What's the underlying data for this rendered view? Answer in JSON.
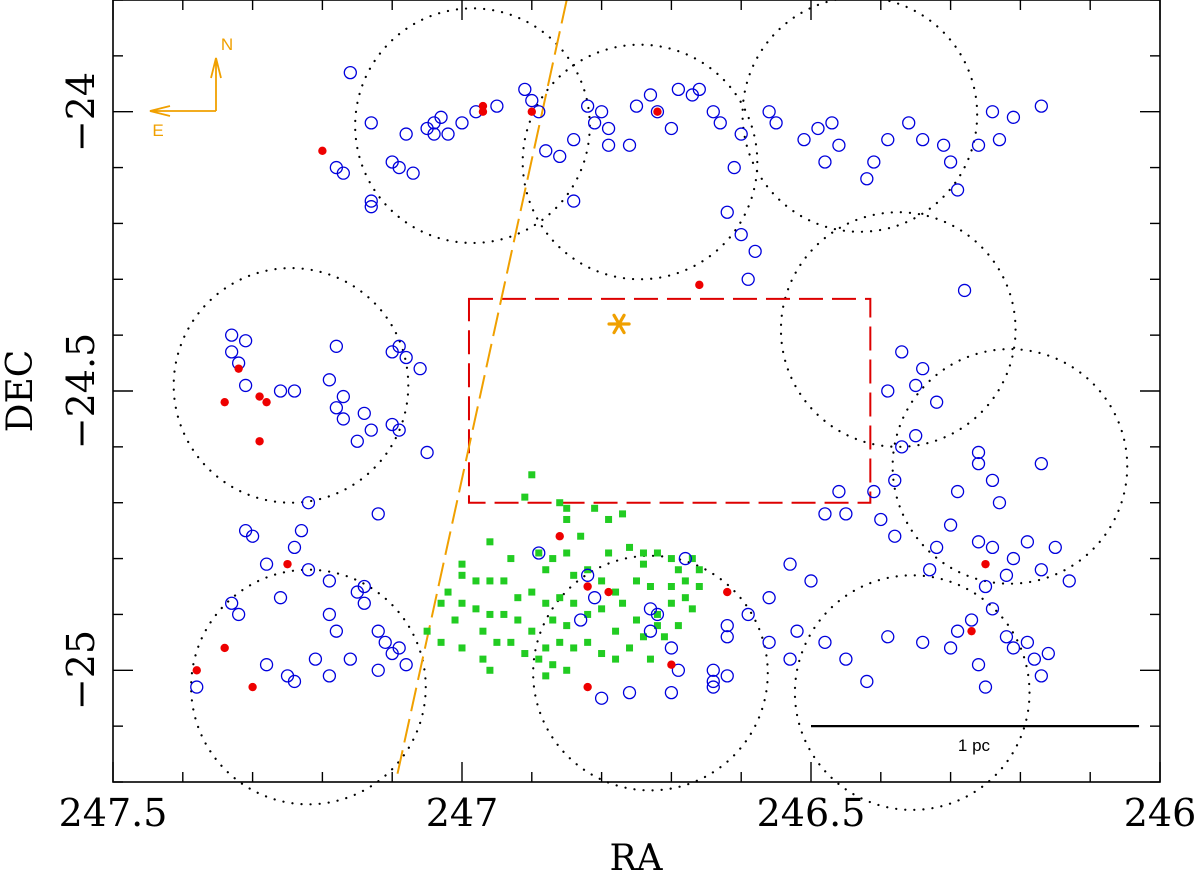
{
  "chart_data": {
    "type": "scatter",
    "xlabel": "RA",
    "ylabel": "DEC",
    "xlim": [
      247.5,
      246.0
    ],
    "ylim": [
      -25.2,
      -23.8
    ],
    "x_ticks": [
      {
        "value": 247.5,
        "label": "247.5"
      },
      {
        "value": 247.0,
        "label": "247"
      },
      {
        "value": 246.5,
        "label": "246.5"
      },
      {
        "value": 246.0,
        "label": "246"
      }
    ],
    "y_ticks": [
      {
        "value": -24.0,
        "label": "−24"
      },
      {
        "value": -24.5,
        "label": "−24.5"
      },
      {
        "value": -25.0,
        "label": "−25"
      }
    ],
    "colors": {
      "blue": "#0000dd",
      "red": "#ee0000",
      "green": "#22cc22",
      "orange": "#f0a000",
      "field": "#000000",
      "box": "#dd0000"
    },
    "fields": [
      {
        "ra": 247.245,
        "dec": -24.49,
        "r": 0.21
      },
      {
        "ra": 247.22,
        "dec": -25.03,
        "r": 0.21
      },
      {
        "ra": 246.985,
        "dec": -24.025,
        "r": 0.21
      },
      {
        "ra": 246.745,
        "dec": -24.09,
        "r": 0.21
      },
      {
        "ra": 246.43,
        "dec": -24.005,
        "r": 0.21
      },
      {
        "ra": 246.73,
        "dec": -25.005,
        "r": 0.21
      },
      {
        "ra": 246.375,
        "dec": -24.39,
        "r": 0.21
      },
      {
        "ra": 246.215,
        "dec": -24.635,
        "r": 0.21
      },
      {
        "ra": 246.355,
        "dec": -25.04,
        "r": 0.21
      }
    ],
    "blue_circles": [
      [
        247.33,
        -24.4
      ],
      [
        247.31,
        -24.41
      ],
      [
        247.33,
        -24.43
      ],
      [
        247.32,
        -24.45
      ],
      [
        247.18,
        -24.42
      ],
      [
        247.19,
        -24.48
      ],
      [
        247.14,
        -24.54
      ],
      [
        247.18,
        -24.53
      ],
      [
        247.17,
        -24.51
      ],
      [
        247.31,
        -24.49
      ],
      [
        247.26,
        -24.5
      ],
      [
        247.24,
        -24.5
      ],
      [
        247.17,
        -24.55
      ],
      [
        247.13,
        -24.57
      ],
      [
        247.15,
        -24.59
      ],
      [
        247.22,
        -24.7
      ],
      [
        247.1,
        -24.43
      ],
      [
        247.09,
        -24.42
      ],
      [
        247.08,
        -24.44
      ],
      [
        247.06,
        -24.46
      ],
      [
        247.1,
        -24.56
      ],
      [
        247.09,
        -24.57
      ],
      [
        247.05,
        -24.61
      ],
      [
        247.12,
        -24.72
      ],
      [
        247.31,
        -24.75
      ],
      [
        247.3,
        -24.76
      ],
      [
        247.28,
        -24.81
      ],
      [
        247.26,
        -24.87
      ],
      [
        247.33,
        -24.88
      ],
      [
        247.32,
        -24.9
      ],
      [
        247.23,
        -24.75
      ],
      [
        247.24,
        -24.78
      ],
      [
        247.22,
        -24.82
      ],
      [
        247.19,
        -24.84
      ],
      [
        247.14,
        -24.85
      ],
      [
        247.15,
        -24.86
      ],
      [
        247.14,
        -24.88
      ],
      [
        247.19,
        -24.9
      ],
      [
        247.18,
        -24.93
      ],
      [
        247.12,
        -24.93
      ],
      [
        247.11,
        -24.95
      ],
      [
        247.1,
        -24.97
      ],
      [
        247.09,
        -24.96
      ],
      [
        247.08,
        -24.99
      ],
      [
        247.21,
        -24.98
      ],
      [
        247.19,
        -25.01
      ],
      [
        247.16,
        -24.98
      ],
      [
        247.12,
        -25.0
      ],
      [
        247.28,
        -24.99
      ],
      [
        247.25,
        -25.01
      ],
      [
        247.24,
        -25.02
      ],
      [
        247.38,
        -25.03
      ],
      [
        247.16,
        -23.93
      ],
      [
        247.13,
        -24.02
      ],
      [
        247.08,
        -24.04
      ],
      [
        247.1,
        -24.09
      ],
      [
        247.07,
        -24.11
      ],
      [
        247.04,
        -24.04
      ],
      [
        247.05,
        -24.03
      ],
      [
        247.04,
        -24.02
      ],
      [
        247.03,
        -24.01
      ],
      [
        247.02,
        -24.04
      ],
      [
        247.0,
        -24.02
      ],
      [
        246.98,
        -24.0
      ],
      [
        246.95,
        -23.99
      ],
      [
        247.18,
        -24.1
      ],
      [
        247.17,
        -24.11
      ],
      [
        247.09,
        -24.1
      ],
      [
        247.13,
        -24.16
      ],
      [
        247.13,
        -24.17
      ],
      [
        246.91,
        -23.96
      ],
      [
        246.9,
        -23.98
      ],
      [
        246.89,
        -24.0
      ],
      [
        246.88,
        -24.07
      ],
      [
        246.86,
        -24.08
      ],
      [
        246.84,
        -24.05
      ],
      [
        246.82,
        -23.99
      ],
      [
        246.81,
        -24.02
      ],
      [
        246.79,
        -24.03
      ],
      [
        246.8,
        -24.0
      ],
      [
        246.79,
        -24.06
      ],
      [
        246.84,
        -24.16
      ],
      [
        246.76,
        -24.06
      ],
      [
        246.75,
        -23.99
      ],
      [
        246.73,
        -23.97
      ],
      [
        246.69,
        -23.96
      ],
      [
        246.72,
        -24.0
      ],
      [
        246.7,
        -24.03
      ],
      [
        246.67,
        -23.97
      ],
      [
        246.66,
        -23.96
      ],
      [
        246.64,
        -24.0
      ],
      [
        246.63,
        -24.02
      ],
      [
        246.61,
        -24.1
      ],
      [
        246.6,
        -24.04
      ],
      [
        246.62,
        -24.18
      ],
      [
        246.56,
        -24.0
      ],
      [
        246.55,
        -24.02
      ],
      [
        246.6,
        -24.22
      ],
      [
        246.58,
        -24.25
      ],
      [
        246.59,
        -24.3
      ],
      [
        246.51,
        -24.05
      ],
      [
        246.49,
        -24.03
      ],
      [
        246.48,
        -24.09
      ],
      [
        246.47,
        -24.02
      ],
      [
        246.46,
        -24.06
      ],
      [
        246.42,
        -24.12
      ],
      [
        246.41,
        -24.09
      ],
      [
        246.39,
        -24.05
      ],
      [
        246.36,
        -24.02
      ],
      [
        246.34,
        -24.05
      ],
      [
        246.31,
        -24.06
      ],
      [
        246.3,
        -24.09
      ],
      [
        246.29,
        -24.14
      ],
      [
        246.26,
        -24.06
      ],
      [
        246.24,
        -24.0
      ],
      [
        246.23,
        -24.05
      ],
      [
        246.17,
        -23.99
      ],
      [
        246.21,
        -24.01
      ],
      [
        246.28,
        -24.32
      ],
      [
        246.37,
        -24.43
      ],
      [
        246.34,
        -24.46
      ],
      [
        246.35,
        -24.49
      ],
      [
        246.39,
        -24.5
      ],
      [
        246.32,
        -24.52
      ],
      [
        246.35,
        -24.58
      ],
      [
        246.26,
        -24.61
      ],
      [
        246.26,
        -24.63
      ],
      [
        246.17,
        -24.63
      ],
      [
        246.24,
        -24.66
      ],
      [
        246.29,
        -24.68
      ],
      [
        246.23,
        -24.7
      ],
      [
        246.3,
        -24.74
      ],
      [
        246.26,
        -24.77
      ],
      [
        246.24,
        -24.78
      ],
      [
        246.19,
        -24.77
      ],
      [
        246.21,
        -24.8
      ],
      [
        246.22,
        -24.83
      ],
      [
        246.15,
        -24.78
      ],
      [
        246.17,
        -24.82
      ],
      [
        246.13,
        -24.84
      ],
      [
        246.37,
        -24.6
      ],
      [
        246.38,
        -24.66
      ],
      [
        246.41,
        -24.68
      ],
      [
        246.46,
        -24.68
      ],
      [
        246.48,
        -24.72
      ],
      [
        246.45,
        -24.72
      ],
      [
        246.4,
        -24.73
      ],
      [
        246.38,
        -24.76
      ],
      [
        246.32,
        -24.78
      ],
      [
        246.33,
        -24.82
      ],
      [
        246.25,
        -24.85
      ],
      [
        246.24,
        -24.89
      ],
      [
        246.27,
        -24.91
      ],
      [
        246.29,
        -24.93
      ],
      [
        246.22,
        -24.94
      ],
      [
        246.21,
        -24.96
      ],
      [
        246.3,
        -24.96
      ],
      [
        246.26,
        -24.99
      ],
      [
        246.25,
        -25.03
      ],
      [
        246.18,
        -24.98
      ],
      [
        246.17,
        -25.01
      ],
      [
        246.16,
        -24.97
      ],
      [
        246.19,
        -24.95
      ],
      [
        246.34,
        -24.95
      ],
      [
        246.52,
        -24.93
      ],
      [
        246.48,
        -24.95
      ],
      [
        246.53,
        -24.98
      ],
      [
        246.45,
        -24.98
      ],
      [
        246.42,
        -25.02
      ],
      [
        246.39,
        -24.94
      ],
      [
        246.59,
        -24.9
      ],
      [
        246.62,
        -24.94
      ],
      [
        246.64,
        -25.02
      ],
      [
        246.64,
        -25.03
      ],
      [
        246.56,
        -24.95
      ],
      [
        246.62,
        -24.92
      ],
      [
        246.56,
        -24.87
      ],
      [
        246.5,
        -24.84
      ],
      [
        246.53,
        -24.81
      ],
      [
        246.68,
        -24.8
      ],
      [
        246.81,
        -24.87
      ],
      [
        246.73,
        -24.89
      ],
      [
        246.72,
        -24.9
      ],
      [
        246.73,
        -24.93
      ],
      [
        246.7,
        -24.96
      ],
      [
        246.69,
        -25.0
      ],
      [
        246.64,
        -25.0
      ],
      [
        246.62,
        -25.01
      ],
      [
        246.8,
        -25.05
      ],
      [
        246.76,
        -25.04
      ],
      [
        246.7,
        -25.04
      ],
      [
        246.82,
        -24.83
      ],
      [
        246.89,
        -24.79
      ],
      [
        246.83,
        -24.91
      ]
    ],
    "red_dots": [
      [
        247.2,
        -24.07
      ],
      [
        246.97,
        -23.99
      ],
      [
        246.97,
        -24.0
      ],
      [
        246.9,
        -24.0
      ],
      [
        246.72,
        -24.0
      ],
      [
        246.66,
        -24.31
      ],
      [
        247.32,
        -24.46
      ],
      [
        247.34,
        -24.52
      ],
      [
        247.29,
        -24.51
      ],
      [
        247.28,
        -24.52
      ],
      [
        247.29,
        -24.59
      ],
      [
        247.25,
        -24.81
      ],
      [
        247.34,
        -24.96
      ],
      [
        247.38,
        -25.0
      ],
      [
        247.3,
        -25.03
      ],
      [
        246.86,
        -24.76
      ],
      [
        246.82,
        -24.85
      ],
      [
        246.79,
        -24.86
      ],
      [
        246.7,
        -24.99
      ],
      [
        246.62,
        -24.86
      ],
      [
        246.25,
        -24.81
      ],
      [
        246.27,
        -24.93
      ],
      [
        246.82,
        -25.03
      ]
    ],
    "green_squares": [
      [
        246.9,
        -24.65
      ],
      [
        246.91,
        -24.69
      ],
      [
        246.86,
        -24.7
      ],
      [
        246.85,
        -24.71
      ],
      [
        246.85,
        -24.73
      ],
      [
        246.81,
        -24.71
      ],
      [
        246.77,
        -24.72
      ],
      [
        246.83,
        -24.76
      ],
      [
        246.79,
        -24.73
      ],
      [
        246.96,
        -24.77
      ],
      [
        246.93,
        -24.8
      ],
      [
        246.89,
        -24.79
      ],
      [
        246.87,
        -24.8
      ],
      [
        246.85,
        -24.79
      ],
      [
        246.82,
        -24.82
      ],
      [
        246.79,
        -24.79
      ],
      [
        246.76,
        -24.78
      ],
      [
        246.74,
        -24.79
      ],
      [
        246.74,
        -24.81
      ],
      [
        246.72,
        -24.79
      ],
      [
        246.7,
        -24.8
      ],
      [
        246.69,
        -24.82
      ],
      [
        246.67,
        -24.8
      ],
      [
        246.68,
        -24.84
      ],
      [
        246.66,
        -24.85
      ],
      [
        246.66,
        -24.82
      ],
      [
        246.7,
        -24.85
      ],
      [
        246.73,
        -24.85
      ],
      [
        246.75,
        -24.84
      ],
      [
        246.78,
        -24.86
      ],
      [
        246.8,
        -24.84
      ],
      [
        246.77,
        -24.88
      ],
      [
        246.72,
        -24.9
      ],
      [
        246.7,
        -24.88
      ],
      [
        246.68,
        -24.87
      ],
      [
        246.67,
        -24.89
      ],
      [
        247.0,
        -24.81
      ],
      [
        247.0,
        -24.83
      ],
      [
        246.98,
        -24.84
      ],
      [
        246.96,
        -24.84
      ],
      [
        246.94,
        -24.84
      ],
      [
        246.9,
        -24.86
      ],
      [
        246.92,
        -24.87
      ],
      [
        246.88,
        -24.88
      ],
      [
        246.86,
        -24.87
      ],
      [
        246.84,
        -24.88
      ],
      [
        246.82,
        -24.9
      ],
      [
        246.8,
        -24.89
      ],
      [
        246.87,
        -24.91
      ],
      [
        246.85,
        -24.92
      ],
      [
        246.9,
        -24.93
      ],
      [
        246.92,
        -24.91
      ],
      [
        246.94,
        -24.9
      ],
      [
        246.96,
        -24.9
      ],
      [
        246.98,
        -24.89
      ],
      [
        247.0,
        -24.88
      ],
      [
        247.02,
        -24.86
      ],
      [
        247.03,
        -24.88
      ],
      [
        247.01,
        -24.91
      ],
      [
        246.97,
        -24.93
      ],
      [
        246.95,
        -24.95
      ],
      [
        246.93,
        -24.95
      ],
      [
        246.91,
        -24.97
      ],
      [
        246.89,
        -24.98
      ],
      [
        246.88,
        -24.96
      ],
      [
        246.86,
        -24.95
      ],
      [
        246.84,
        -24.96
      ],
      [
        246.82,
        -24.95
      ],
      [
        246.8,
        -24.97
      ],
      [
        246.78,
        -24.98
      ],
      [
        246.76,
        -24.96
      ],
      [
        246.74,
        -24.94
      ],
      [
        246.72,
        -24.92
      ],
      [
        246.71,
        -24.94
      ],
      [
        246.69,
        -24.92
      ],
      [
        246.73,
        -24.98
      ],
      [
        246.75,
        -24.91
      ],
      [
        246.78,
        -24.93
      ],
      [
        246.85,
        -25.0
      ],
      [
        246.87,
        -24.99
      ],
      [
        246.88,
        -25.01
      ],
      [
        246.96,
        -25.0
      ],
      [
        246.97,
        -24.98
      ],
      [
        247.0,
        -24.96
      ],
      [
        247.03,
        -24.95
      ],
      [
        247.05,
        -24.93
      ],
      [
        246.88,
        -24.82
      ],
      [
        246.84,
        -24.83
      ]
    ],
    "box": {
      "ra_min": 246.415,
      "ra_max": 246.99,
      "dec_top": -24.335,
      "dec_bottom": -24.7
    },
    "dashed_line": {
      "ra_start": 246.85,
      "dec_start": -23.8,
      "ra_end": 247.095,
      "dec_end": -25.2
    },
    "star": {
      "ra": 246.775,
      "dec": -24.38
    },
    "scale_bar": {
      "ra_start": 246.5,
      "ra_end": 246.03,
      "dec": -25.1,
      "label": "1 pc"
    },
    "compass": {
      "north": "N",
      "east": "E"
    }
  }
}
